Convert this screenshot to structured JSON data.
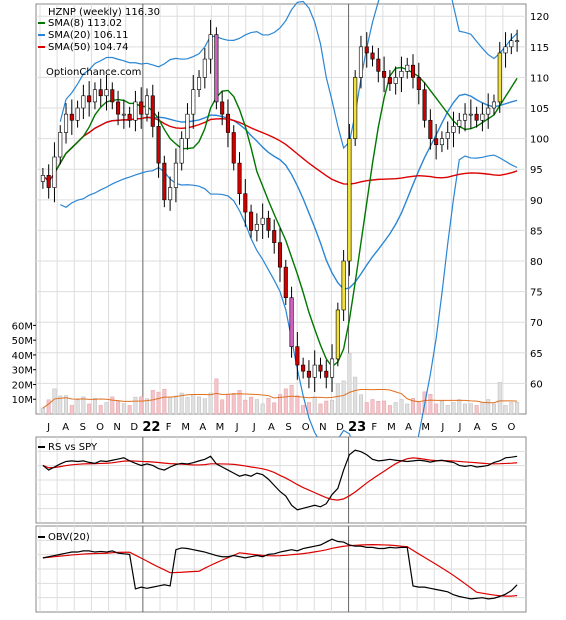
{
  "chart_data": [
    {
      "type": "candlestick",
      "title": "HZNP (weekly) 116.30",
      "watermark": "OptionChance.com",
      "ylim": [
        55,
        122
      ],
      "ylim_volume_m": [
        0,
        65
      ],
      "price_ticks": [
        60,
        65,
        70,
        75,
        80,
        85,
        90,
        95,
        100,
        105,
        110,
        115,
        120
      ],
      "volume_ticks": [
        "10M",
        "20M",
        "30M",
        "40M",
        "50M",
        "60M"
      ],
      "x_labels": [
        "J",
        "A",
        "S",
        "O",
        "N",
        "D",
        "22",
        "F",
        "M",
        "A",
        "M",
        "J",
        "J",
        "A",
        "S",
        "O",
        "N",
        "D",
        "23",
        "F",
        "M",
        "A",
        "M",
        "J",
        "J",
        "A",
        "S",
        "O"
      ],
      "legend": [
        {
          "label": "SMA(8) 113.02",
          "color": "#007700"
        },
        {
          "label": "SMA(20) 106.11",
          "color": "#2a86d4"
        },
        {
          "label": "SMA(50) 104.74",
          "color": "#dd0000"
        }
      ],
      "close": [
        94,
        92,
        97,
        101,
        104,
        103,
        105,
        107,
        106,
        108,
        107,
        108,
        106,
        104,
        104,
        103,
        106,
        104,
        107,
        102,
        96,
        90,
        92,
        96,
        100,
        104,
        108,
        110,
        113,
        117,
        106,
        104,
        101,
        96,
        91,
        88,
        85,
        86,
        87,
        85,
        83,
        79,
        74,
        66,
        63,
        62,
        61,
        63,
        62,
        61,
        64,
        72,
        80,
        100,
        110,
        115,
        114,
        113,
        111,
        110,
        109,
        110,
        111,
        112,
        110,
        108,
        103,
        100,
        99,
        100,
        101,
        102,
        103,
        104,
        104,
        103,
        104,
        105,
        106,
        114,
        115,
        116,
        116
      ]
    },
    {
      "type": "line",
      "title": "RS vs SPY",
      "series": [
        {
          "name": "RS vs SPY",
          "values": [
            0.55,
            0.4,
            0.5,
            0.6,
            0.68,
            0.7,
            0.68,
            0.7,
            0.65,
            0.62,
            0.7,
            0.68,
            0.72,
            0.76,
            0.8,
            0.7,
            0.62,
            0.55,
            0.6,
            0.55,
            0.45,
            0.4,
            0.5,
            0.58,
            0.62,
            0.6,
            0.64,
            0.7,
            0.75,
            0.85,
            0.6,
            0.5,
            0.4,
            0.3,
            0.2,
            0.25,
            0.2,
            0.3,
            0.25,
            0.1,
            -0.1,
            -0.3,
            -0.45,
            -0.75,
            -0.9,
            -0.85,
            -0.8,
            -0.75,
            -0.8,
            -0.7,
            -0.4,
            -0.2,
            0.4,
            0.9,
            1.05,
            1.0,
            0.9,
            0.75,
            0.7,
            0.72,
            0.75,
            0.72,
            0.7,
            0.68,
            0.7,
            0.72,
            0.7,
            0.66,
            0.7,
            0.72,
            0.68,
            0.65,
            0.55,
            0.52,
            0.55,
            0.5,
            0.52,
            0.55,
            0.65,
            0.7,
            0.8,
            0.82,
            0.85
          ]
        }
      ]
    },
    {
      "type": "line",
      "title": "OBV(20)",
      "series": [
        {
          "name": "OBV(20)",
          "values": [
            0.68,
            0.7,
            0.72,
            0.74,
            0.76,
            0.78,
            0.78,
            0.8,
            0.8,
            0.78,
            0.79,
            0.78,
            0.8,
            0.76,
            0.75,
            0.74,
            0.15,
            0.18,
            0.16,
            0.18,
            0.2,
            0.22,
            0.2,
            0.82,
            0.85,
            0.84,
            0.82,
            0.8,
            0.78,
            0.75,
            0.72,
            0.7,
            0.7,
            0.72,
            0.7,
            0.68,
            0.7,
            0.72,
            0.7,
            0.74,
            0.75,
            0.78,
            0.8,
            0.82,
            0.8,
            0.84,
            0.86,
            0.88,
            0.9,
            0.95,
            1.0,
            0.96,
            0.95,
            0.9,
            0.88,
            0.88,
            0.86,
            0.86,
            0.84,
            0.84,
            0.86,
            0.85,
            0.86,
            0.86,
            0.2,
            0.18,
            0.18,
            0.16,
            0.14,
            0.12,
            0.1,
            0.05,
            0.02,
            0.0,
            -0.02,
            -0.01,
            0.0,
            -0.02,
            -0.01,
            0.02,
            0.06,
            0.12,
            0.22
          ]
        }
      ]
    }
  ]
}
